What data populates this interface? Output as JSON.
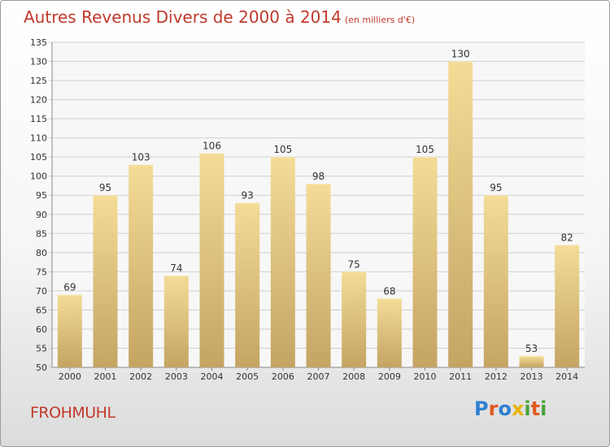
{
  "title": "Autres Revenus Divers de 2000 à 2014",
  "subtitle": "(en milliers d'€)",
  "commune": "FROHMUHL",
  "logo": {
    "text": "Proxiti",
    "colors": [
      "#2e7fd1",
      "#e05a1e",
      "#2e7fd1",
      "#e8b400",
      "#4aa33a",
      "#e05a1e",
      "#4aa33a"
    ]
  },
  "colors": {
    "title": "#c0392b",
    "bar_light": "#f4dc97",
    "bar_dark": "#c4a463",
    "grid": "#cfcfcf",
    "plot_bg": "#f7f7f7"
  },
  "chart_data": {
    "type": "bar",
    "categories": [
      "2000",
      "2001",
      "2002",
      "2003",
      "2004",
      "2005",
      "2006",
      "2007",
      "2008",
      "2009",
      "2010",
      "2011",
      "2012",
      "2013",
      "2014"
    ],
    "values": [
      69,
      95,
      103,
      74,
      106,
      93,
      105,
      98,
      75,
      68,
      105,
      130,
      95,
      53,
      82
    ],
    "title": "Autres Revenus Divers de 2000 à 2014",
    "ylim": [
      50,
      135
    ],
    "yticks": [
      50,
      55,
      60,
      65,
      70,
      75,
      80,
      85,
      90,
      95,
      100,
      105,
      110,
      115,
      120,
      125,
      130,
      135
    ],
    "grid": true
  }
}
